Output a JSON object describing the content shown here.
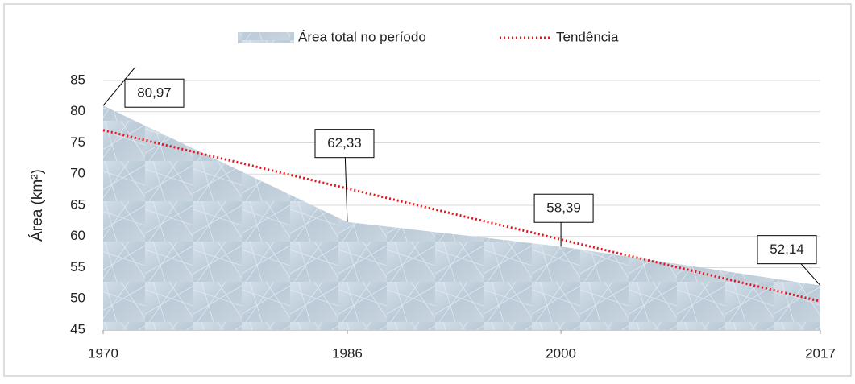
{
  "chart_data": {
    "type": "area",
    "ylabel": "Área (km²)",
    "x": [
      1970,
      1986,
      2000,
      2017
    ],
    "series": [
      {
        "name": "Área total no período",
        "color": "#c9d6e2",
        "values": [
          80.97,
          62.33,
          58.39,
          52.14
        ],
        "value_labels": [
          "80,97",
          "62,33",
          "58,39",
          "52,14"
        ]
      },
      {
        "name": "Tendência",
        "color": "#e8141c",
        "values": [
          77.03,
          67.69,
          59.52,
          49.6
        ],
        "style": "dotted"
      }
    ],
    "xlim": [
      1970,
      2017
    ],
    "xticks": [
      1970,
      1986,
      2000,
      2017
    ],
    "ylim": [
      45,
      85
    ],
    "yticks": [
      45,
      50,
      55,
      60,
      65,
      70,
      75,
      80,
      85
    ],
    "grid": true,
    "legend": "top"
  }
}
